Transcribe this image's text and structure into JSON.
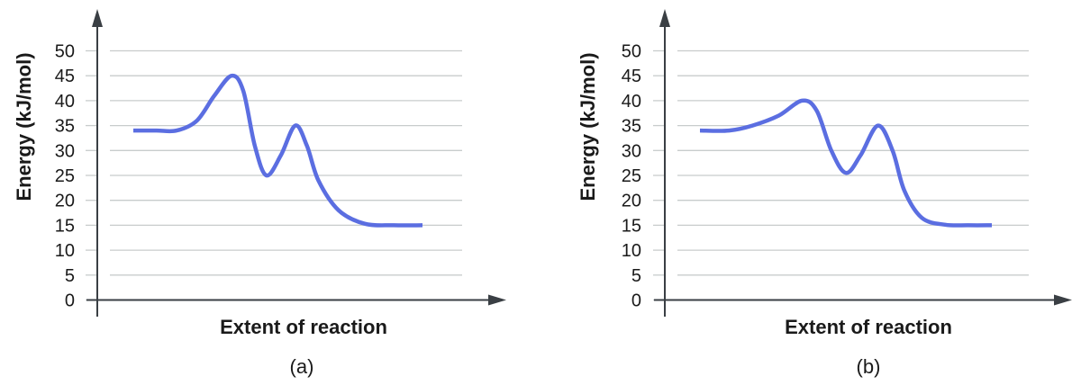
{
  "colors": {
    "curve": "#5b6ee1",
    "grid": "#c8cccc",
    "axis": "#3a3f44",
    "text": "#1a1a1a"
  },
  "chart_data": [
    {
      "type": "line",
      "panel_label": "(a)",
      "xlabel": "Extent of reaction",
      "ylabel": "Energy (kJ/mol)",
      "ylim": [
        0,
        50
      ],
      "yticks": [
        "0",
        "5",
        "10",
        "15",
        "20",
        "25",
        "30",
        "35",
        "40",
        "45",
        "50"
      ],
      "grid": true,
      "x_tick_labels": false,
      "series": [
        {
          "points": [
            {
              "x": 0.0,
              "y": 34
            },
            {
              "x": 0.08,
              "y": 34
            },
            {
              "x": 0.15,
              "y": 34
            },
            {
              "x": 0.22,
              "y": 36
            },
            {
              "x": 0.28,
              "y": 41
            },
            {
              "x": 0.34,
              "y": 45
            },
            {
              "x": 0.38,
              "y": 42
            },
            {
              "x": 0.42,
              "y": 31
            },
            {
              "x": 0.46,
              "y": 25
            },
            {
              "x": 0.51,
              "y": 29
            },
            {
              "x": 0.56,
              "y": 35
            },
            {
              "x": 0.6,
              "y": 31
            },
            {
              "x": 0.64,
              "y": 24
            },
            {
              "x": 0.71,
              "y": 18
            },
            {
              "x": 0.8,
              "y": 15.3
            },
            {
              "x": 0.9,
              "y": 15
            },
            {
              "x": 1.0,
              "y": 15
            }
          ]
        }
      ]
    },
    {
      "type": "line",
      "panel_label": "(b)",
      "xlabel": "Extent of reaction",
      "ylabel": "Energy (kJ/mol)",
      "ylim": [
        0,
        50
      ],
      "yticks": [
        "0",
        "5",
        "10",
        "15",
        "20",
        "25",
        "30",
        "35",
        "40",
        "45",
        "50"
      ],
      "grid": true,
      "x_tick_labels": false,
      "series": [
        {
          "points": [
            {
              "x": 0.0,
              "y": 34
            },
            {
              "x": 0.1,
              "y": 34
            },
            {
              "x": 0.18,
              "y": 35
            },
            {
              "x": 0.27,
              "y": 37
            },
            {
              "x": 0.35,
              "y": 40
            },
            {
              "x": 0.4,
              "y": 38
            },
            {
              "x": 0.45,
              "y": 30
            },
            {
              "x": 0.5,
              "y": 25.5
            },
            {
              "x": 0.55,
              "y": 29
            },
            {
              "x": 0.61,
              "y": 35
            },
            {
              "x": 0.66,
              "y": 30
            },
            {
              "x": 0.7,
              "y": 22
            },
            {
              "x": 0.76,
              "y": 16.5
            },
            {
              "x": 0.84,
              "y": 15.1
            },
            {
              "x": 0.92,
              "y": 15
            },
            {
              "x": 1.0,
              "y": 15
            }
          ]
        }
      ]
    }
  ]
}
